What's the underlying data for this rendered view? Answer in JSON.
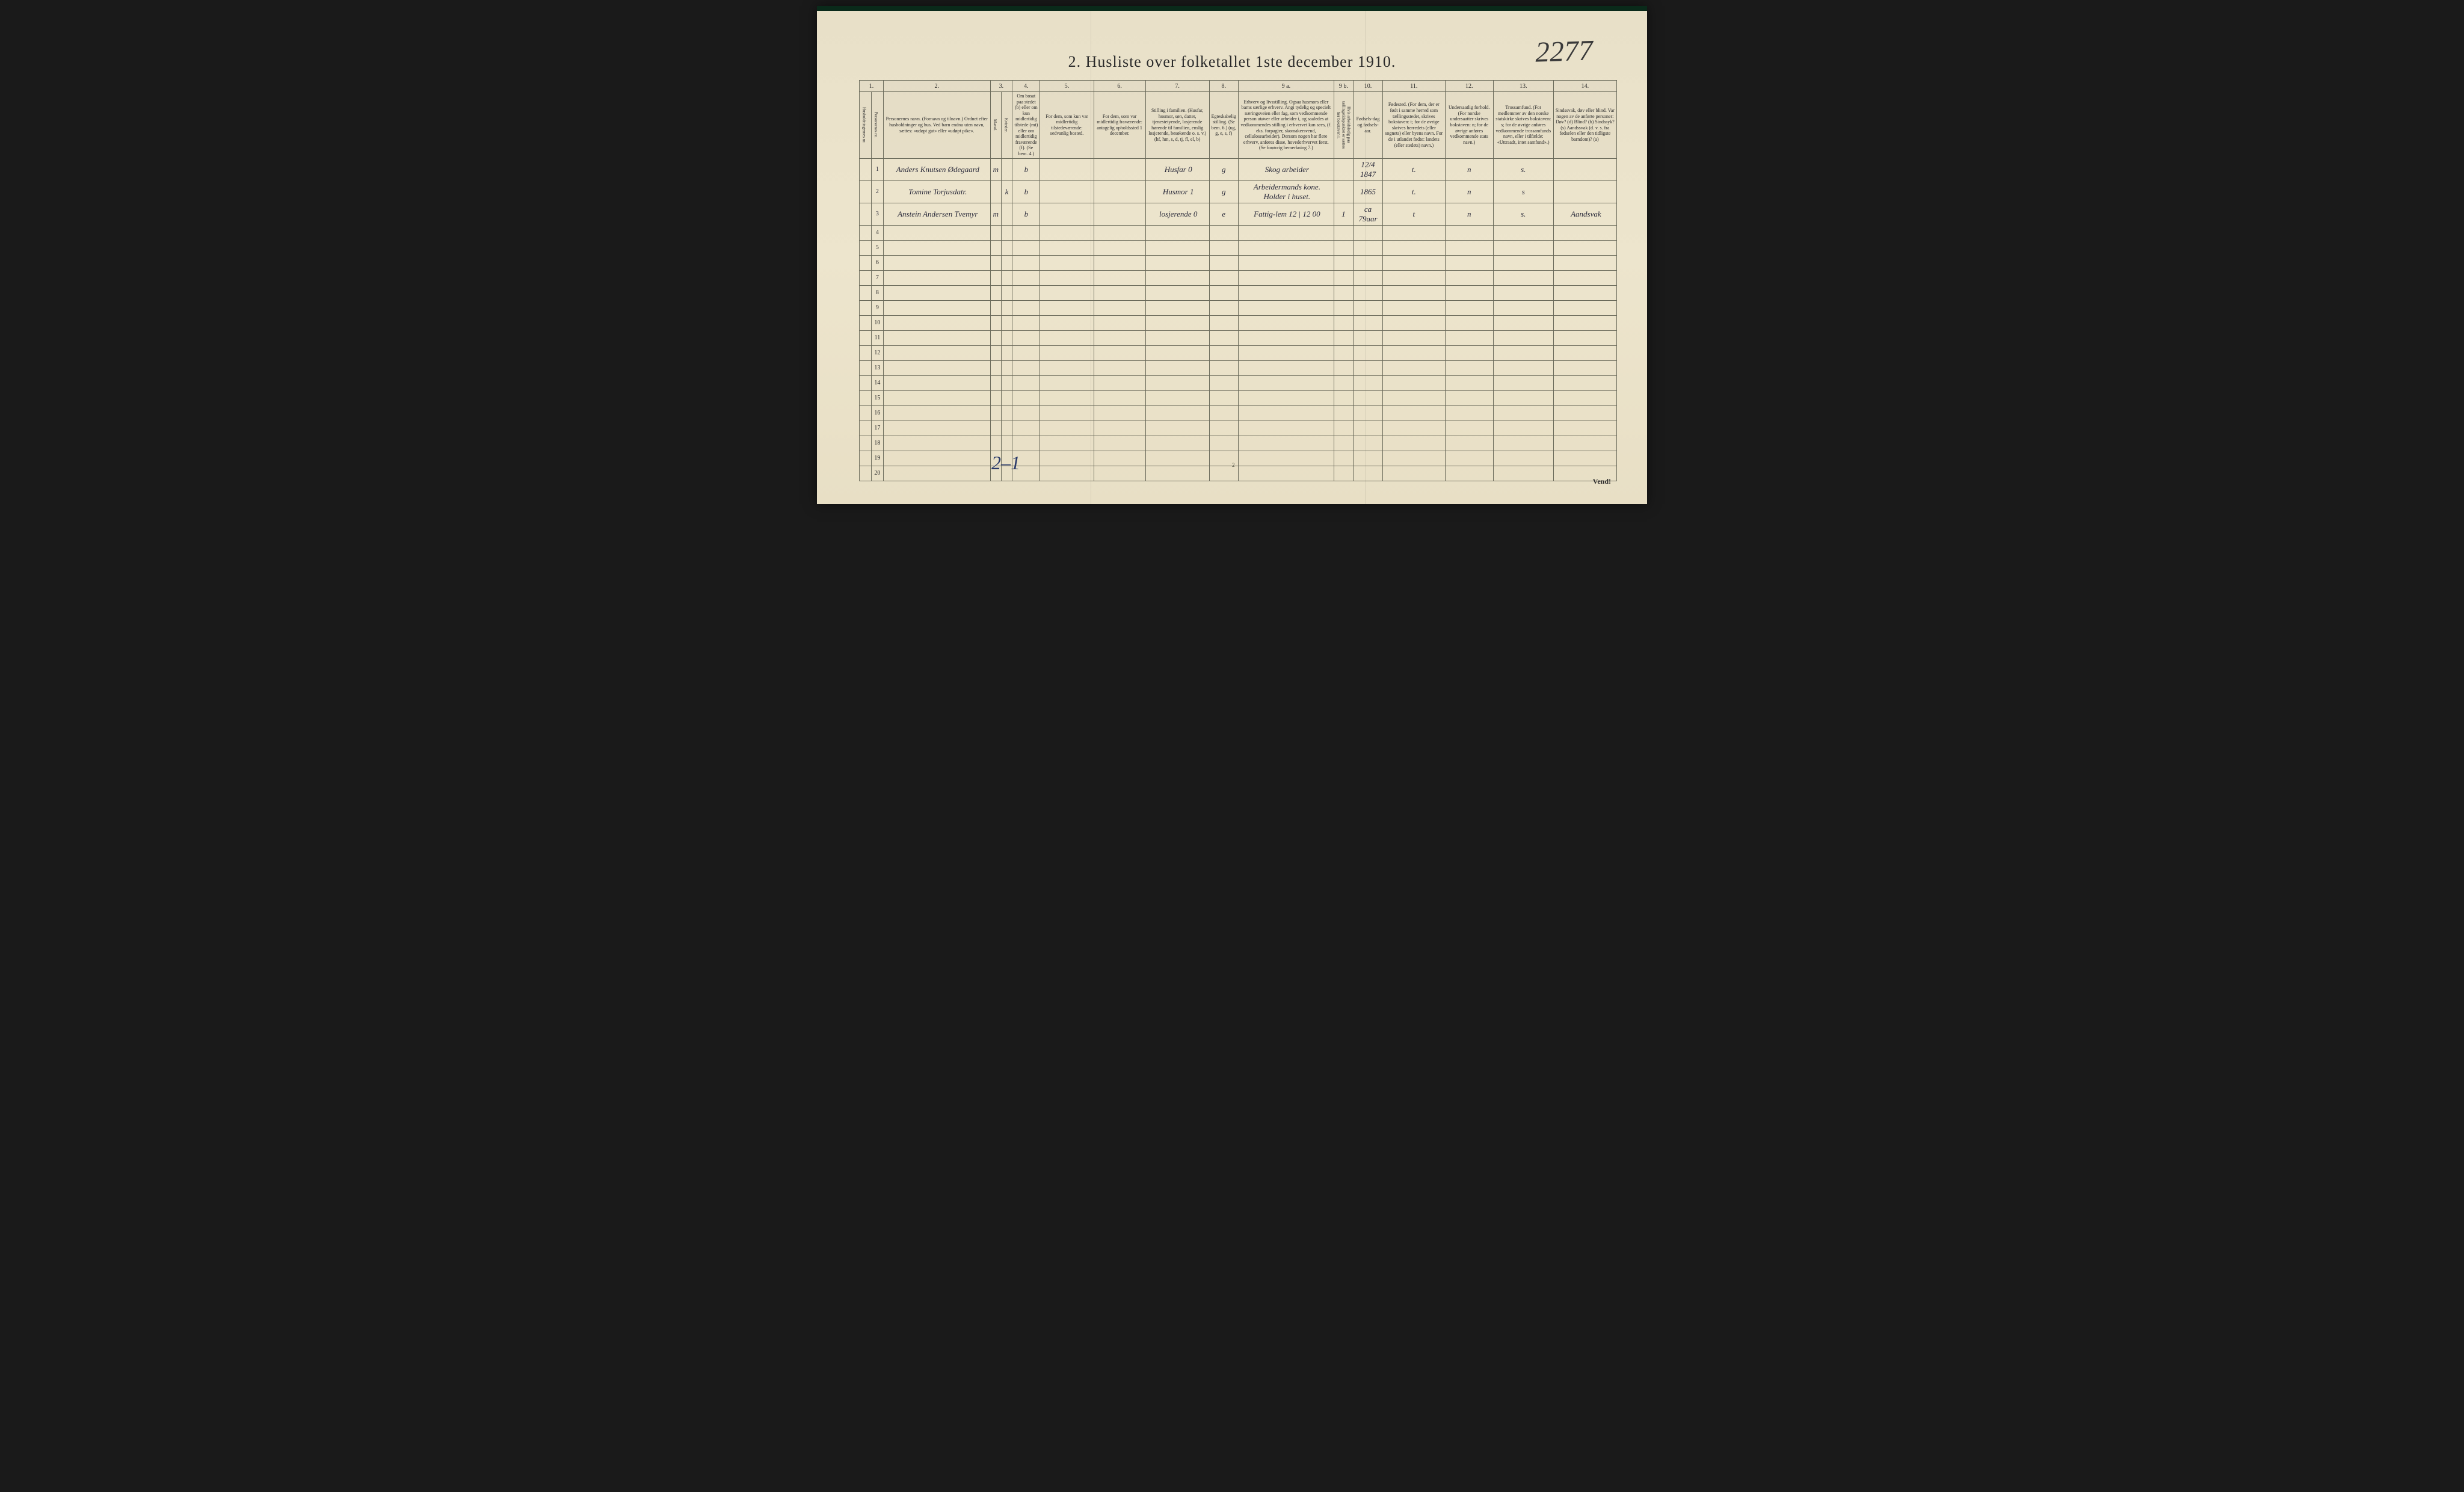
{
  "page_number_handwritten": "2277",
  "title": "2.  Husliste over folketallet 1ste december 1910.",
  "column_numbers": [
    "1.",
    "",
    "2.",
    "3.",
    "4.",
    "5.",
    "6.",
    "7.",
    "8.",
    "9 a.",
    "9 b.",
    "10.",
    "11.",
    "12.",
    "13.",
    "14."
  ],
  "headers": {
    "col1": "Husholdningernes nr.",
    "col1b": "Personernes nr.",
    "col2": "Personernes navn.\n(Fornavn og tilnavn.)\nOrdnet efter husholdninger og hus.\nVed barn endnu uten navn, sættes: «udøpt gut» eller «udøpt pike».",
    "col3": "Kjøn.",
    "col3_m": "Mænd.",
    "col3_k": "Kvinder.",
    "col4": "Om bosat paa stedet (b) eller om kun midlertidig tilstede (mt) eller om midlertidig fraværende (f). (Se bem. 4.)",
    "col5": "For dem, som kun var midlertidig tilstedeværende:\nsedvanlig bosted.",
    "col6": "For dem, som var midlertidig fraværende:\nantagelig opholdssted 1 december.",
    "col7": "Stilling i familien.\n(Husfar, husmor, søn, datter, tjenestetyende, losjerende hørende til familien, enslig losjerende, besøkende o. s. v.)\n(hf, hm, s, d, tj, fl, el, b)",
    "col8": "Egteskabelig stilling. (Se bem. 6.) (ug, g, e, s, f)",
    "col9a": "Erhverv og livsstilling.\nOgsaa husmors eller barns særlige erhverv. Angi tydelig og specielt næringsveien eller fag, som vedkommende person utøver eller arbeider i, og saaledes at vedkommendes stilling i erhvervet kan sees, (f. eks. forpagter, skomakersvend, cellulosearbeider). Dersom nogen har flere erhverv, anføres disse, hovederhvervet først. (Se forøvrig bemerkning 7.)",
    "col9b": "Hvis arbeidsledig paa tællingstidspunktet er sættes her bokstaven l.",
    "col10": "Fødsels-dag og fødsels-aar.",
    "col11": "Fødested.\n(For dem, der er født i samme herred som tællingsstedet, skrives bokstaven: t; for de øvrige skrives herredets (eller sognets) eller byens navn. For de i utlandet fødte: landets (eller stedets) navn.)",
    "col12": "Undersaatlig forhold.\n(For norske undersaatter skrives bokstaven: n; for de øvrige anføres vedkommende stats navn.)",
    "col13": "Trossamfund.\n(For medlemmer av den norske statskirke skrives bokstaven: s; for de øvrige anføres vedkommende trossamfunds navn, eller i tilfælde: «Uttraadt, intet samfund».)",
    "col14": "Sindssvak, døv eller blind.\nVar nogen av de anførte personer:\nDøv? (d)\nBlind? (b)\nSindssyk? (s)\nAandssvak (d. v. s. fra fødselen eller den tidligste barndom)? (a)"
  },
  "rows": [
    {
      "num": "1",
      "name": "Anders Knutsen Ødegaard",
      "sex_m": "m",
      "sex_k": "",
      "bosat": "b",
      "col5": "",
      "col6": "",
      "stilling": "Husfar 0",
      "egte": "g",
      "erhverv": "Skog arbeider",
      "col9b": "",
      "fodsel": "12/4 1847",
      "fodested": "t.",
      "under": "n",
      "tros": "s.",
      "sind": ""
    },
    {
      "num": "2",
      "name": "Tomine Torjusdatr.",
      "sex_m": "",
      "sex_k": "k",
      "bosat": "b",
      "col5": "",
      "col6": "",
      "stilling": "Husmor 1",
      "egte": "g",
      "erhverv": "Arbeidermands kone. Holder i huset.",
      "col9b": "",
      "fodsel": "1865",
      "fodested": "t.",
      "under": "n",
      "tros": "s",
      "sind": ""
    },
    {
      "num": "3",
      "name": "Anstein Andersen Tvemyr",
      "sex_m": "m",
      "sex_k": "",
      "bosat": "b",
      "col5": "",
      "col6": "",
      "stilling": "losjerende 0",
      "egte": "e",
      "erhverv": "Fattig-lem 12 | 12  00",
      "col9b": "1",
      "fodsel": "ca 79aar",
      "fodested": "t",
      "under": "n",
      "tros": "s.",
      "sind": "Aandsvak"
    }
  ],
  "empty_row_count": 17,
  "bottom_hand_note": "2–1",
  "tiny_page": "2",
  "vend": "Vend!",
  "widths": {
    "c1": 14,
    "c1b": 14,
    "c2": 200,
    "c3m": 12,
    "c3k": 12,
    "c4": 40,
    "c5": 90,
    "c6": 90,
    "c7": 110,
    "c8": 38,
    "c9a": 170,
    "c9b": 18,
    "c10": 45,
    "c11": 110,
    "c12": 80,
    "c13": 105,
    "c14": 110
  }
}
